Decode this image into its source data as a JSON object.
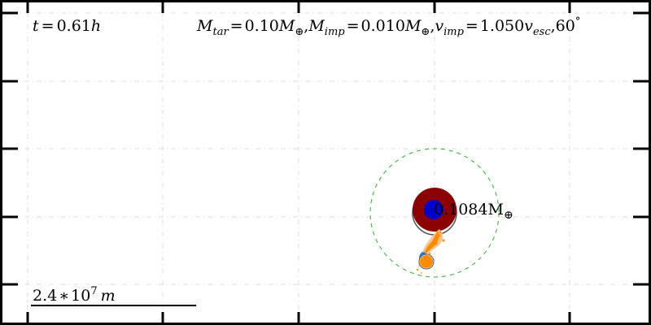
{
  "time": {
    "var": "t",
    "eq": "=",
    "value": "0.61",
    "unit": "h"
  },
  "params": {
    "target_mass": {
      "sym": "M",
      "sub": "tar",
      "eq": "=",
      "value": "0.10",
      "unit": "M",
      "unit_sub": "⊕"
    },
    "sep1": ",",
    "impactor_mass": {
      "sym": "M",
      "sub": "imp",
      "eq": "=",
      "value": "0.010",
      "unit": "M",
      "unit_sub": "⊕"
    },
    "sep2": ",",
    "impactor_velocity": {
      "sym": "v",
      "sub": "imp",
      "eq": "=",
      "value": "1.050",
      "unit": "v",
      "unit_sub": "esc"
    },
    "sep3": ",",
    "angle": {
      "value": "60",
      "unit_sup": "°"
    }
  },
  "body_label": {
    "value": "0.1084",
    "unit": "M",
    "unit_sub": "⊕"
  },
  "scale_bar": {
    "coef": "2.4",
    "times": "∗",
    "base": "10",
    "exp": "7",
    "unit": "m"
  },
  "colors": {
    "background": "#ffffff",
    "frame": "#000000",
    "grid": "#d9d9d9",
    "mantle": "#8b0000",
    "core": "#0000cc",
    "ejecta": "#ff8c00",
    "ejecta_light": "#f5c08a",
    "impactor_core": "#3a7bd5",
    "hill_circle": "#33aa33"
  }
}
